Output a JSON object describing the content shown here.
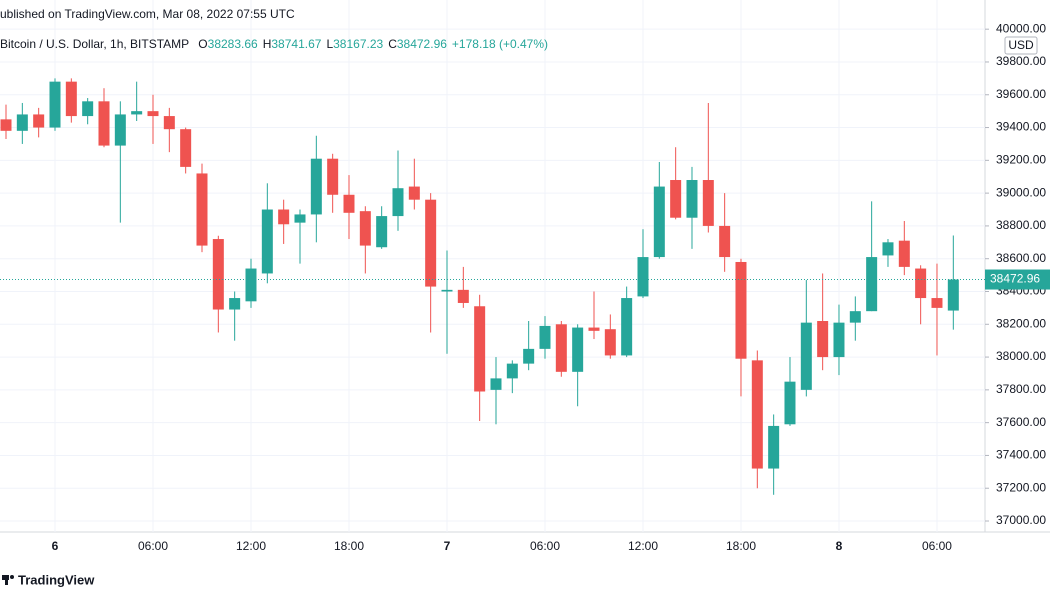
{
  "header": {
    "published": "ublished on TradingView.com, Mar 08, 2022 07:55 UTC",
    "symbol": "Bitcoin / U.S. Dollar, 1h, BITSTAMP",
    "ohlc": [
      {
        "label": "O",
        "value": "38283.66"
      },
      {
        "label": "H",
        "value": "38741.67"
      },
      {
        "label": "L",
        "value": "38167.23"
      },
      {
        "label": "C",
        "value": "38472.96"
      }
    ],
    "change": "+178.18 (+0.47%)"
  },
  "footer": {
    "brand": "TradingView"
  },
  "chart_data": {
    "type": "candlestick",
    "currency": "USD",
    "categories": [
      null,
      null,
      null,
      "6",
      null,
      null,
      null,
      null,
      null,
      "06:00",
      null,
      null,
      null,
      null,
      null,
      "12:00",
      null,
      null,
      null,
      null,
      null,
      "18:00",
      null,
      null,
      null,
      null,
      null,
      "7",
      null,
      null,
      null,
      null,
      null,
      "06:00",
      null,
      null,
      null,
      null,
      null,
      "12:00",
      null,
      null,
      null,
      null,
      null,
      "18:00",
      null,
      null,
      null,
      null,
      null,
      "8",
      null,
      null,
      null,
      null,
      null,
      "06:00",
      null
    ],
    "open": [
      39450,
      39380,
      39480,
      39400,
      39680,
      39470,
      39560,
      39290,
      39480,
      39500,
      39470,
      39390,
      39120,
      38720,
      38290,
      38340,
      38510,
      38900,
      38820,
      38870,
      39210,
      38990,
      38890,
      38670,
      38860,
      39040,
      38960,
      38400,
      38410,
      38310,
      37800,
      37870,
      37960,
      38050,
      38200,
      37910,
      38180,
      38170,
      38010,
      38370,
      38610,
      39080,
      38850,
      39080,
      38800,
      38580,
      37980,
      37320,
      37590,
      37800,
      38220,
      38000,
      38210,
      38280,
      38620,
      38710,
      38540,
      38360,
      38283.66
    ],
    "high": [
      39540,
      39550,
      39520,
      39700,
      39700,
      39580,
      39640,
      39560,
      39680,
      39600,
      39520,
      39400,
      39180,
      38740,
      38400,
      38600,
      39060,
      38960,
      38900,
      39350,
      39240,
      39110,
      38920,
      38920,
      39260,
      39210,
      39000,
      38650,
      38550,
      38380,
      38000,
      37980,
      38220,
      38250,
      38220,
      38200,
      38400,
      38260,
      38430,
      38780,
      39190,
      39280,
      39160,
      39550,
      39000,
      38600,
      38040,
      37650,
      38000,
      38470,
      38510,
      38320,
      38370,
      38950,
      38720,
      38830,
      38560,
      38570,
      38741.67
    ],
    "low": [
      39330,
      39300,
      39340,
      39380,
      39430,
      39420,
      39280,
      38820,
      39440,
      39300,
      39250,
      39120,
      38640,
      38150,
      38100,
      38300,
      38450,
      38690,
      38570,
      38700,
      38880,
      38720,
      38510,
      38660,
      38770,
      38900,
      38150,
      38020,
      38300,
      37610,
      37590,
      37780,
      37920,
      37990,
      37880,
      37700,
      38110,
      37990,
      38000,
      38360,
      38600,
      38840,
      38660,
      38760,
      38520,
      37760,
      37200,
      37160,
      37580,
      37760,
      37920,
      37890,
      38100,
      38280,
      38550,
      38500,
      38200,
      38010,
      38167.23
    ],
    "close": [
      39380,
      39480,
      39400,
      39680,
      39470,
      39560,
      39290,
      39480,
      39500,
      39470,
      39390,
      39160,
      38680,
      38290,
      38360,
      38540,
      38900,
      38810,
      38870,
      39210,
      38990,
      38880,
      38680,
      38860,
      39030,
      38960,
      38430,
      38410,
      38330,
      37790,
      37870,
      37960,
      38050,
      38190,
      37910,
      38180,
      38160,
      38010,
      38360,
      38610,
      39040,
      38850,
      39080,
      38800,
      38610,
      37990,
      37320,
      37580,
      37850,
      38210,
      38000,
      38210,
      38280,
      38610,
      38700,
      38550,
      38360,
      38300,
      38472.96
    ],
    "up_color": "#26a69a",
    "down_color": "#ef5350",
    "grid": true,
    "ylim": [
      36933,
      40178
    ],
    "yticks": [
      {
        "value": 37000,
        "label": "37000.00"
      },
      {
        "value": 37200,
        "label": "37200.00"
      },
      {
        "value": 37400,
        "label": "37400.00"
      },
      {
        "value": 37600,
        "label": "37600.00"
      },
      {
        "value": 37800,
        "label": "37800.00"
      },
      {
        "value": 38000,
        "label": "38000.00"
      },
      {
        "value": 38200,
        "label": "38200.00"
      },
      {
        "value": 38400,
        "label": "38400.00"
      },
      {
        "value": 38600,
        "label": "38600.00"
      },
      {
        "value": 38800,
        "label": "38800.00"
      },
      {
        "value": 39000,
        "label": "39000.00"
      },
      {
        "value": 39200,
        "label": "39200.00"
      },
      {
        "value": 39400,
        "label": "39400.00"
      },
      {
        "value": 39600,
        "label": "39600.00"
      },
      {
        "value": 39800,
        "label": "39800.00"
      },
      {
        "value": 40000,
        "label": "40000.00"
      }
    ]
  }
}
